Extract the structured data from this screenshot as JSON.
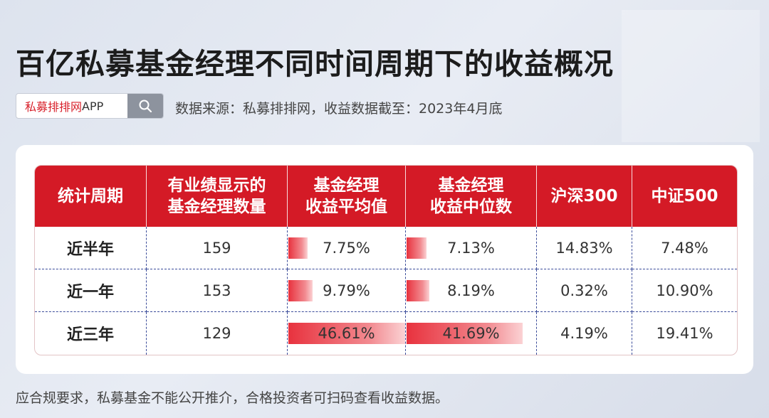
{
  "title": "百亿私募基金经理不同时间周期下的收益概况",
  "search": {
    "brand": "私募排排网",
    "suffix": "APP"
  },
  "source": "数据来源：私募排排网，收益数据截至：2023年4月底",
  "watermark": "私募排排网",
  "table": {
    "headers": [
      [
        "统计周期"
      ],
      [
        "有业绩显示的",
        "基金经理数量"
      ],
      [
        "基金经理",
        "收益平均值"
      ],
      [
        "基金经理",
        "收益中位数"
      ],
      [
        "沪深300"
      ],
      [
        "中证500"
      ]
    ],
    "rows": [
      {
        "period": "近半年",
        "count": "159",
        "avg": "7.75%",
        "avg_value": 7.75,
        "median": "7.13%",
        "median_value": 7.13,
        "hs300": "14.83%",
        "zz500": "7.48%"
      },
      {
        "period": "近一年",
        "count": "153",
        "avg": "9.79%",
        "avg_value": 9.79,
        "median": "8.19%",
        "median_value": 8.19,
        "hs300": "0.32%",
        "zz500": "10.90%"
      },
      {
        "period": "近三年",
        "count": "129",
        "avg": "46.61%",
        "avg_value": 46.61,
        "median": "41.69%",
        "median_value": 41.69,
        "hs300": "4.19%",
        "zz500": "19.41%"
      }
    ]
  },
  "footer": "应合规要求，私募基金不能公开推介，合格投资者可扫码查看收益数据。",
  "colors": {
    "brand_red": "#d41a26",
    "bar_red": "#e8323e",
    "divider_blue": "#3b4c9a"
  },
  "icons": {
    "search": "search-icon"
  }
}
